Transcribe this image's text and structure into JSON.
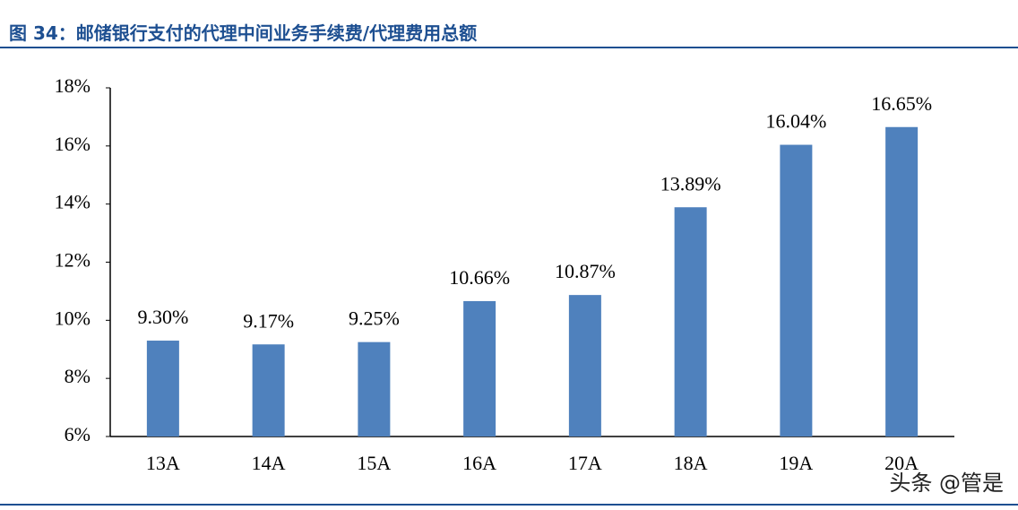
{
  "chart_data": {
    "type": "bar",
    "title": "图 34：邮储银行支付的代理中间业务手续费/代理费用总额",
    "categories": [
      "13A",
      "14A",
      "15A",
      "16A",
      "17A",
      "18A",
      "19A",
      "20A"
    ],
    "values": [
      9.3,
      9.17,
      9.25,
      10.66,
      10.87,
      13.89,
      16.04,
      16.65
    ],
    "value_labels": [
      "9.30%",
      "9.17%",
      "9.25%",
      "10.66%",
      "10.87%",
      "13.89%",
      "16.04%",
      "16.65%"
    ],
    "color": "#4f81bd",
    "ylim": [
      6,
      18
    ],
    "yticks": [
      {
        "value": 6,
        "label": "6%"
      },
      {
        "value": 8,
        "label": "8%"
      },
      {
        "value": 10,
        "label": "10%"
      },
      {
        "value": 12,
        "label": "12%"
      },
      {
        "value": 14,
        "label": "14%"
      },
      {
        "value": 16,
        "label": "16%"
      },
      {
        "value": 18,
        "label": "18%"
      }
    ],
    "grid": false,
    "watermark": "头条 @管是"
  }
}
